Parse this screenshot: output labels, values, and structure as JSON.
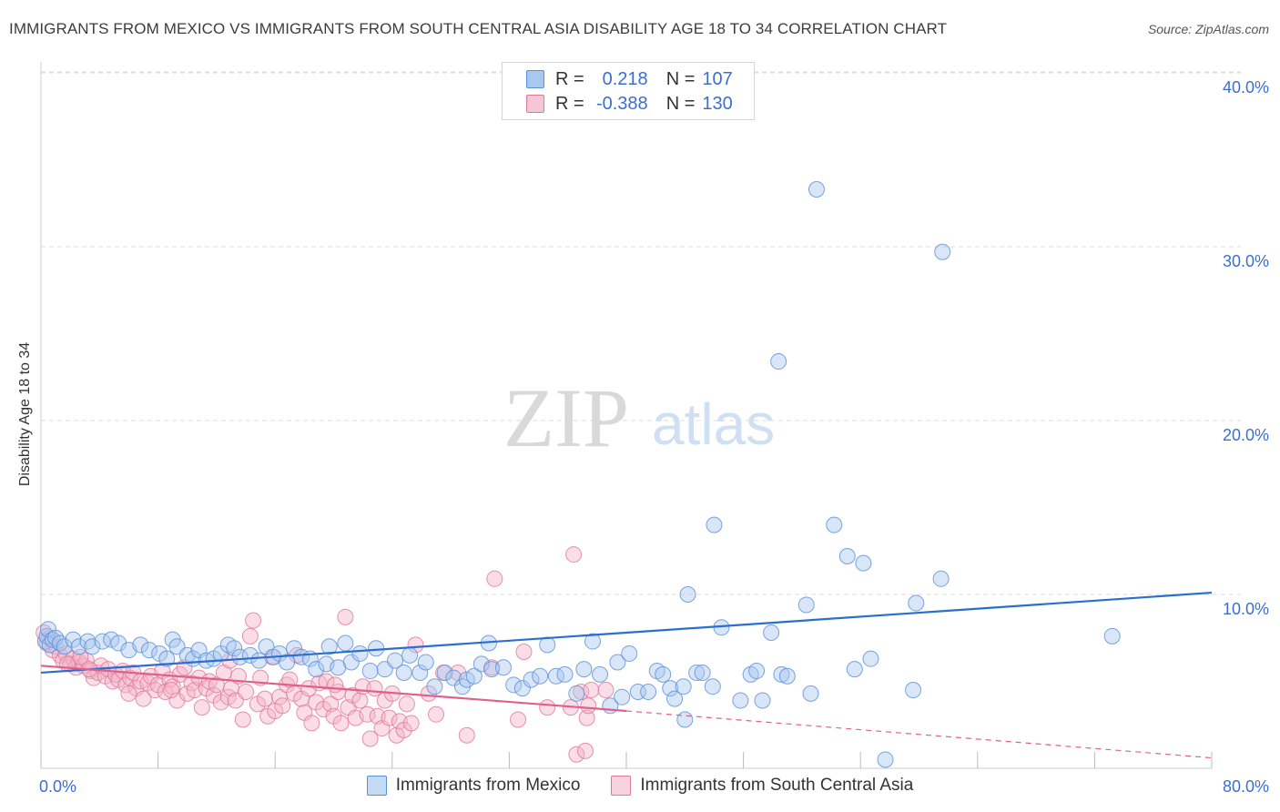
{
  "title": "IMMIGRANTS FROM MEXICO VS IMMIGRANTS FROM SOUTH CENTRAL ASIA DISABILITY AGE 18 TO 34 CORRELATION CHART",
  "source": "Source: ZipAtlas.com",
  "watermark": {
    "zip": "ZIP",
    "atlas": "atlas"
  },
  "legend": {
    "rows": [
      {
        "r_label": "R =",
        "r_value": "0.218",
        "n_label": "N =",
        "n_value": "107"
      },
      {
        "r_label": "R =",
        "r_value": "-0.388",
        "n_label": "N =",
        "n_value": "130"
      }
    ]
  },
  "colors": {
    "blue_fill": "#a8c8f0",
    "blue_stroke": "#5a8fd8",
    "blue_line": "#2a6fd0",
    "pink_fill": "#f5b3c8",
    "pink_stroke": "#e07898",
    "pink_line": "#e0608a",
    "axis_text": "#3b6fcf",
    "grid": "#dddddd"
  },
  "chart_data": {
    "type": "scatter",
    "title": "IMMIGRANTS FROM MEXICO VS IMMIGRANTS FROM SOUTH CENTRAL ASIA DISABILITY AGE 18 TO 34 CORRELATION CHART",
    "xlabel": "",
    "ylabel": "Disability Age 18 to 34",
    "xlim": [
      0,
      80
    ],
    "ylim": [
      0,
      40
    ],
    "x_tick_labels": [
      "0.0%",
      "80.0%"
    ],
    "y_ticks": [
      10,
      20,
      30,
      40
    ],
    "y_tick_labels": [
      "10.0%",
      "20.0%",
      "30.0%",
      "40.0%"
    ],
    "grid": true,
    "legend_position": "top-center",
    "series": [
      {
        "name": "Immigrants from Mexico",
        "trend": {
          "x": [
            0,
            80
          ],
          "y": [
            5.5,
            10.1
          ],
          "style": "solid"
        },
        "points": [
          [
            0.3,
            7.3
          ],
          [
            0.4,
            7.6
          ],
          [
            0.5,
            8.0
          ],
          [
            0.6,
            7.1
          ],
          [
            0.8,
            7.4
          ],
          [
            1.0,
            7.5
          ],
          [
            1.3,
            7.2
          ],
          [
            1.6,
            7.0
          ],
          [
            2.2,
            7.4
          ],
          [
            2.6,
            7.0
          ],
          [
            3.2,
            7.3
          ],
          [
            3.5,
            7.0
          ],
          [
            4.2,
            7.3
          ],
          [
            4.8,
            7.4
          ],
          [
            5.3,
            7.2
          ],
          [
            6.0,
            6.8
          ],
          [
            6.8,
            7.1
          ],
          [
            7.4,
            6.8
          ],
          [
            8.1,
            6.6
          ],
          [
            8.6,
            6.3
          ],
          [
            9.0,
            7.4
          ],
          [
            9.3,
            7.0
          ],
          [
            10.0,
            6.5
          ],
          [
            10.4,
            6.3
          ],
          [
            10.8,
            6.8
          ],
          [
            11.3,
            6.2
          ],
          [
            11.8,
            6.3
          ],
          [
            12.3,
            6.6
          ],
          [
            12.8,
            7.1
          ],
          [
            13.2,
            6.9
          ],
          [
            13.6,
            6.4
          ],
          [
            14.3,
            6.5
          ],
          [
            14.9,
            6.2
          ],
          [
            15.4,
            7.0
          ],
          [
            15.9,
            6.4
          ],
          [
            16.3,
            6.6
          ],
          [
            16.8,
            6.1
          ],
          [
            17.3,
            6.9
          ],
          [
            17.8,
            6.4
          ],
          [
            18.4,
            6.3
          ],
          [
            18.8,
            5.7
          ],
          [
            19.5,
            6.0
          ],
          [
            19.7,
            7.0
          ],
          [
            20.3,
            5.8
          ],
          [
            20.8,
            7.2
          ],
          [
            21.2,
            6.1
          ],
          [
            21.8,
            6.6
          ],
          [
            22.5,
            5.6
          ],
          [
            22.9,
            6.9
          ],
          [
            23.5,
            5.7
          ],
          [
            24.2,
            6.2
          ],
          [
            24.8,
            5.5
          ],
          [
            25.2,
            6.5
          ],
          [
            25.9,
            5.5
          ],
          [
            26.3,
            6.1
          ],
          [
            26.9,
            4.7
          ],
          [
            27.6,
            5.5
          ],
          [
            28.2,
            5.2
          ],
          [
            28.8,
            4.7
          ],
          [
            29.1,
            5.1
          ],
          [
            29.6,
            5.3
          ],
          [
            30.1,
            6.0
          ],
          [
            30.6,
            7.2
          ],
          [
            30.8,
            5.7
          ],
          [
            31.6,
            5.8
          ],
          [
            32.3,
            4.8
          ],
          [
            32.9,
            4.6
          ],
          [
            33.5,
            5.1
          ],
          [
            34.1,
            5.3
          ],
          [
            34.6,
            7.1
          ],
          [
            35.2,
            5.3
          ],
          [
            35.8,
            5.4
          ],
          [
            36.6,
            4.3
          ],
          [
            37.1,
            5.7
          ],
          [
            37.7,
            7.3
          ],
          [
            38.2,
            5.4
          ],
          [
            38.9,
            3.6
          ],
          [
            39.4,
            6.1
          ],
          [
            39.7,
            4.1
          ],
          [
            40.2,
            6.6
          ],
          [
            40.8,
            4.4
          ],
          [
            41.5,
            4.4
          ],
          [
            42.1,
            5.6
          ],
          [
            42.5,
            5.4
          ],
          [
            43.0,
            4.6
          ],
          [
            43.3,
            4.0
          ],
          [
            43.9,
            4.7
          ],
          [
            44.0,
            2.8
          ],
          [
            44.2,
            10.0
          ],
          [
            44.8,
            5.5
          ],
          [
            45.2,
            5.5
          ],
          [
            45.9,
            4.7
          ],
          [
            46.0,
            14.0
          ],
          [
            46.5,
            8.1
          ],
          [
            47.8,
            3.9
          ],
          [
            48.5,
            5.4
          ],
          [
            48.9,
            5.6
          ],
          [
            49.3,
            3.9
          ],
          [
            49.9,
            7.8
          ],
          [
            50.6,
            5.4
          ],
          [
            51.0,
            5.3
          ],
          [
            50.4,
            23.4
          ],
          [
            52.3,
            9.4
          ],
          [
            52.6,
            4.3
          ],
          [
            54.2,
            14.0
          ],
          [
            55.1,
            12.2
          ],
          [
            55.6,
            5.7
          ],
          [
            56.2,
            11.8
          ],
          [
            56.7,
            6.3
          ],
          [
            57.7,
            0.5
          ],
          [
            59.6,
            4.5
          ],
          [
            59.8,
            9.5
          ],
          [
            61.5,
            10.9
          ],
          [
            73.2,
            7.6
          ],
          [
            61.6,
            29.7
          ],
          [
            53.0,
            33.3
          ]
        ]
      },
      {
        "name": "Immigrants from South Central Asia",
        "trend_solid": {
          "x": [
            0,
            40
          ],
          "y": [
            5.9,
            3.3
          ]
        },
        "trend_dashed": {
          "x": [
            40,
            80
          ],
          "y": [
            3.3,
            0.6
          ]
        },
        "points": [
          [
            0.2,
            7.8
          ],
          [
            0.4,
            7.2
          ],
          [
            0.6,
            7.5
          ],
          [
            0.8,
            6.8
          ],
          [
            1.0,
            7.0
          ],
          [
            1.3,
            6.5
          ],
          [
            1.5,
            6.2
          ],
          [
            1.7,
            6.6
          ],
          [
            2.0,
            6.0
          ],
          [
            2.2,
            6.3
          ],
          [
            2.4,
            5.8
          ],
          [
            2.6,
            6.1
          ],
          [
            2.9,
            5.9
          ],
          [
            3.1,
            6.2
          ],
          [
            3.4,
            5.6
          ],
          [
            3.6,
            5.2
          ],
          [
            3.9,
            5.5
          ],
          [
            4.1,
            5.9
          ],
          [
            4.4,
            5.3
          ],
          [
            4.6,
            5.7
          ],
          [
            4.9,
            5.0
          ],
          [
            5.1,
            5.4
          ],
          [
            5.3,
            5.1
          ],
          [
            5.6,
            5.6
          ],
          [
            5.8,
            4.8
          ],
          [
            6.1,
            5.2
          ],
          [
            6.3,
            5.5
          ],
          [
            6.5,
            4.6
          ],
          [
            6.8,
            5.0
          ],
          [
            7.0,
            4.0
          ],
          [
            7.3,
            4.9
          ],
          [
            7.5,
            5.3
          ],
          [
            7.8,
            4.5
          ],
          [
            8.0,
            4.8
          ],
          [
            8.3,
            5.6
          ],
          [
            8.5,
            4.4
          ],
          [
            8.8,
            5.1
          ],
          [
            9.0,
            4.7
          ],
          [
            9.3,
            3.9
          ],
          [
            9.5,
            5.4
          ],
          [
            9.8,
            5.8
          ],
          [
            10.0,
            4.3
          ],
          [
            10.3,
            4.9
          ],
          [
            10.5,
            4.5
          ],
          [
            10.8,
            5.2
          ],
          [
            11.0,
            3.5
          ],
          [
            11.3,
            4.6
          ],
          [
            11.5,
            5.0
          ],
          [
            11.8,
            4.2
          ],
          [
            12.0,
            4.8
          ],
          [
            12.3,
            3.8
          ],
          [
            12.5,
            5.5
          ],
          [
            12.8,
            4.1
          ],
          [
            13.0,
            4.6
          ],
          [
            13.3,
            3.9
          ],
          [
            13.5,
            5.3
          ],
          [
            13.8,
            2.8
          ],
          [
            14.0,
            4.4
          ],
          [
            14.3,
            7.6
          ],
          [
            14.5,
            8.5
          ],
          [
            14.8,
            3.7
          ],
          [
            15.0,
            5.2
          ],
          [
            15.3,
            4.0
          ],
          [
            15.5,
            3.0
          ],
          [
            15.8,
            6.4
          ],
          [
            16.0,
            3.3
          ],
          [
            16.3,
            4.1
          ],
          [
            16.5,
            3.6
          ],
          [
            16.8,
            4.8
          ],
          [
            17.0,
            5.1
          ],
          [
            17.3,
            4.3
          ],
          [
            17.5,
            6.5
          ],
          [
            17.8,
            4.0
          ],
          [
            18.0,
            3.2
          ],
          [
            18.3,
            4.6
          ],
          [
            18.5,
            2.6
          ],
          [
            18.8,
            3.8
          ],
          [
            19.0,
            4.9
          ],
          [
            19.3,
            3.4
          ],
          [
            19.5,
            5.0
          ],
          [
            19.8,
            3.7
          ],
          [
            20.0,
            3.0
          ],
          [
            20.3,
            4.4
          ],
          [
            20.5,
            2.6
          ],
          [
            20.8,
            8.7
          ],
          [
            21.0,
            3.5
          ],
          [
            21.3,
            4.2
          ],
          [
            21.5,
            2.9
          ],
          [
            21.8,
            3.9
          ],
          [
            22.0,
            4.7
          ],
          [
            22.3,
            3.1
          ],
          [
            22.5,
            1.7
          ],
          [
            22.8,
            4.6
          ],
          [
            23.0,
            3.0
          ],
          [
            23.3,
            2.3
          ],
          [
            23.5,
            3.9
          ],
          [
            23.8,
            2.9
          ],
          [
            24.0,
            4.3
          ],
          [
            24.3,
            1.9
          ],
          [
            24.5,
            2.7
          ],
          [
            24.8,
            2.2
          ],
          [
            25.0,
            3.7
          ],
          [
            25.3,
            2.6
          ],
          [
            25.6,
            7.1
          ],
          [
            26.5,
            4.3
          ],
          [
            27.0,
            3.1
          ],
          [
            27.5,
            5.5
          ],
          [
            28.5,
            5.5
          ],
          [
            29.1,
            1.9
          ],
          [
            30.8,
            5.8
          ],
          [
            31.0,
            10.9
          ],
          [
            32.6,
            2.8
          ],
          [
            33.0,
            6.7
          ],
          [
            34.6,
            3.5
          ],
          [
            36.2,
            3.5
          ],
          [
            36.6,
            0.8
          ],
          [
            36.9,
            4.4
          ],
          [
            37.3,
            2.9
          ],
          [
            37.4,
            3.6
          ],
          [
            37.6,
            4.5
          ],
          [
            37.2,
            1.0
          ],
          [
            36.4,
            12.3
          ],
          [
            38.6,
            4.5
          ],
          [
            1.8,
            6.0
          ],
          [
            2.7,
            6.4
          ],
          [
            3.3,
            5.7
          ],
          [
            6.0,
            4.3
          ],
          [
            8.9,
            4.5
          ],
          [
            12.9,
            6.2
          ],
          [
            20.1,
            4.8
          ]
        ]
      }
    ]
  }
}
